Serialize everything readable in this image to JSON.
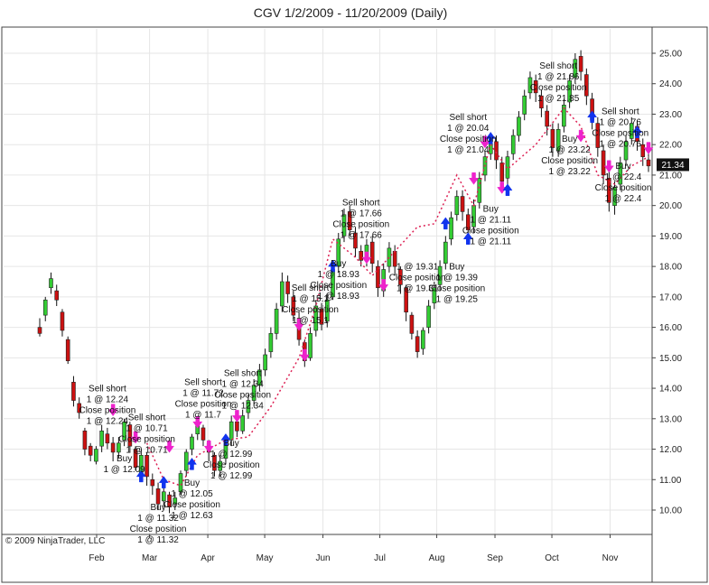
{
  "chart_data": {
    "type": "candlestick",
    "title": "CGV  1/2/2009 - 11/20/2009 (Daily)",
    "copyright": "© 2009 NinjaTrader, LLC",
    "ylim": [
      9.2,
      25.8
    ],
    "y_ticks": [
      "10.00",
      "11.00",
      "12.00",
      "13.00",
      "14.00",
      "15.00",
      "16.00",
      "17.00",
      "18.00",
      "19.00",
      "20.00",
      "21.00",
      "22.00",
      "23.00",
      "24.00",
      "25.00"
    ],
    "x_ticks": [
      {
        "label": "Feb",
        "week": 4.3
      },
      {
        "label": "Mar",
        "week": 8.3
      },
      {
        "label": "Apr",
        "week": 12.7
      },
      {
        "label": "May",
        "week": 17.0
      },
      {
        "label": "Jun",
        "week": 21.4
      },
      {
        "label": "Jul",
        "week": 25.7
      },
      {
        "label": "Aug",
        "week": 30.0
      },
      {
        "label": "Sep",
        "week": 34.4
      },
      {
        "label": "Oct",
        "week": 38.7
      },
      {
        "label": "Nov",
        "week": 43.1
      }
    ],
    "last_price": "21.34",
    "colors": {
      "up": "#33cc33",
      "down": "#cc1111",
      "wick": "#111111",
      "grid": "#e6e6e6",
      "last_bg": "#111111",
      "trade_line": "#dd2255"
    },
    "candles": [
      [
        0,
        16.0,
        15.8,
        16.3,
        15.7
      ],
      [
        1,
        16.4,
        16.9,
        17.0,
        16.2
      ],
      [
        2,
        17.3,
        17.6,
        17.8,
        17.1
      ],
      [
        3,
        17.2,
        16.9,
        17.4,
        16.7
      ],
      [
        4,
        16.5,
        15.9,
        16.6,
        15.7
      ],
      [
        5,
        15.6,
        14.9,
        15.7,
        14.8
      ],
      [
        6,
        14.2,
        13.6,
        14.4,
        13.4
      ],
      [
        7,
        13.5,
        13.2,
        13.7,
        13.0
      ],
      [
        8,
        12.6,
        12.0,
        12.7,
        11.8
      ],
      [
        9,
        12.1,
        11.8,
        12.2,
        11.6
      ],
      [
        10,
        11.6,
        12.0,
        12.1,
        11.5
      ],
      [
        11,
        12.1,
        12.6,
        12.8,
        11.9
      ],
      [
        12,
        12.5,
        12.2,
        12.7,
        12.0
      ],
      [
        13,
        12.2,
        11.9,
        12.4,
        11.6
      ],
      [
        14,
        11.9,
        12.2,
        12.4,
        11.7
      ],
      [
        15,
        12.3,
        12.9,
        13.0,
        12.1
      ],
      [
        16,
        12.8,
        12.1,
        12.9,
        11.9
      ],
      [
        17,
        12.0,
        11.4,
        12.1,
        11.3
      ],
      [
        18,
        11.2,
        11.8,
        12.0,
        11.0
      ],
      [
        19,
        11.8,
        11.1,
        11.9,
        10.8
      ],
      [
        20,
        11.0,
        10.8,
        11.2,
        10.5
      ],
      [
        21,
        10.7,
        10.2,
        10.9,
        10.0
      ],
      [
        22,
        10.3,
        10.6,
        10.8,
        10.1
      ],
      [
        23,
        10.5,
        10.1,
        10.6,
        9.9
      ],
      [
        24,
        10.2,
        10.4,
        10.6,
        10.0
      ],
      [
        25,
        10.6,
        11.2,
        11.3,
        10.5
      ],
      [
        26,
        11.3,
        11.9,
        12.0,
        11.1
      ],
      [
        27,
        12.0,
        12.4,
        12.5,
        11.8
      ],
      [
        28,
        12.5,
        12.8,
        13.0,
        12.3
      ],
      [
        29,
        12.7,
        12.3,
        12.8,
        12.1
      ],
      [
        30,
        12.2,
        11.9,
        12.3,
        11.6
      ],
      [
        31,
        11.8,
        11.3,
        11.9,
        11.1
      ],
      [
        32,
        11.3,
        11.6,
        11.8,
        11.1
      ],
      [
        33,
        11.7,
        12.2,
        12.4,
        11.5
      ],
      [
        34,
        12.3,
        12.9,
        13.1,
        12.1
      ],
      [
        35,
        12.9,
        12.6,
        13.0,
        12.4
      ],
      [
        36,
        12.6,
        13.1,
        13.3,
        12.5
      ],
      [
        37,
        13.2,
        13.6,
        13.8,
        13.0
      ],
      [
        38,
        13.6,
        14.1,
        14.3,
        13.4
      ],
      [
        39,
        14.1,
        14.6,
        14.8,
        13.9
      ],
      [
        40,
        14.6,
        15.1,
        15.3,
        14.4
      ],
      [
        41,
        15.2,
        15.8,
        16.0,
        15.0
      ],
      [
        42,
        15.8,
        16.6,
        16.8,
        15.6
      ],
      [
        43,
        16.7,
        17.5,
        17.8,
        16.5
      ],
      [
        44,
        17.5,
        17.1,
        17.7,
        16.8
      ],
      [
        45,
        17.0,
        16.4,
        17.2,
        16.2
      ],
      [
        46,
        16.3,
        15.6,
        16.5,
        15.4
      ],
      [
        47,
        15.5,
        14.9,
        15.6,
        14.7
      ],
      [
        48,
        15.0,
        15.8,
        16.0,
        14.9
      ],
      [
        49,
        15.9,
        16.7,
        16.9,
        15.7
      ],
      [
        50,
        16.6,
        16.1,
        16.8,
        15.9
      ],
      [
        51,
        16.2,
        16.9,
        17.1,
        16.0
      ],
      [
        52,
        17.0,
        17.9,
        18.1,
        16.9
      ],
      [
        53,
        18.0,
        18.9,
        19.1,
        17.8
      ],
      [
        54,
        19.0,
        19.7,
        19.9,
        18.8
      ],
      [
        55,
        19.8,
        19.2,
        20.0,
        19.0
      ],
      [
        56,
        19.1,
        18.6,
        19.3,
        18.3
      ],
      [
        57,
        18.5,
        18.2,
        18.7,
        18.0
      ],
      [
        58,
        18.2,
        18.7,
        18.9,
        18.0
      ],
      [
        59,
        18.8,
        18.1,
        19.0,
        17.8
      ],
      [
        60,
        18.0,
        17.3,
        18.2,
        17.0
      ],
      [
        61,
        17.2,
        17.9,
        18.1,
        17.0
      ],
      [
        62,
        18.0,
        18.6,
        18.8,
        17.8
      ],
      [
        63,
        18.5,
        18.0,
        18.7,
        17.7
      ],
      [
        64,
        17.9,
        17.4,
        18.0,
        17.1
      ],
      [
        65,
        17.3,
        16.5,
        17.4,
        16.2
      ],
      [
        66,
        16.4,
        15.8,
        16.5,
        15.6
      ],
      [
        67,
        15.7,
        15.2,
        15.9,
        15.0
      ],
      [
        68,
        15.3,
        15.9,
        16.0,
        15.1
      ],
      [
        69,
        16.0,
        16.7,
        16.9,
        15.8
      ],
      [
        70,
        16.8,
        17.3,
        17.5,
        16.6
      ],
      [
        71,
        17.4,
        18.0,
        18.2,
        17.2
      ],
      [
        72,
        18.1,
        18.8,
        19.0,
        17.9
      ],
      [
        73,
        18.9,
        19.6,
        19.8,
        18.7
      ],
      [
        74,
        19.7,
        20.3,
        20.5,
        19.5
      ],
      [
        75,
        20.3,
        19.8,
        20.5,
        19.5
      ],
      [
        76,
        19.7,
        19.2,
        19.9,
        18.9
      ],
      [
        77,
        19.3,
        20.0,
        20.2,
        19.1
      ],
      [
        78,
        20.1,
        20.9,
        21.1,
        19.9
      ],
      [
        79,
        21.0,
        21.6,
        21.8,
        20.8
      ],
      [
        80,
        21.7,
        22.2,
        22.4,
        21.5
      ],
      [
        81,
        22.1,
        21.5,
        22.3,
        21.2
      ],
      [
        82,
        21.4,
        20.8,
        21.6,
        20.5
      ],
      [
        83,
        20.9,
        21.6,
        21.8,
        20.7
      ],
      [
        84,
        21.7,
        22.3,
        22.5,
        21.5
      ],
      [
        85,
        22.3,
        22.9,
        23.1,
        22.1
      ],
      [
        86,
        23.0,
        23.6,
        23.8,
        22.8
      ],
      [
        87,
        23.7,
        24.2,
        24.4,
        23.5
      ],
      [
        88,
        24.1,
        23.7,
        24.3,
        23.4
      ],
      [
        89,
        23.6,
        23.2,
        23.8,
        22.9
      ],
      [
        90,
        23.1,
        22.6,
        23.3,
        22.3
      ],
      [
        91,
        22.5,
        21.9,
        22.7,
        21.6
      ],
      [
        92,
        21.8,
        22.5,
        22.7,
        21.6
      ],
      [
        93,
        22.6,
        23.3,
        23.5,
        22.4
      ],
      [
        94,
        23.4,
        24.1,
        24.3,
        23.2
      ],
      [
        95,
        24.2,
        24.8,
        25.0,
        24.0
      ],
      [
        96,
        24.9,
        24.4,
        25.1,
        24.1
      ],
      [
        97,
        24.3,
        23.6,
        24.5,
        23.3
      ],
      [
        98,
        23.5,
        22.8,
        23.7,
        22.5
      ],
      [
        99,
        22.7,
        21.9,
        22.9,
        21.6
      ],
      [
        100,
        21.8,
        21.0,
        22.0,
        20.7
      ],
      [
        101,
        20.9,
        20.1,
        21.1,
        19.8
      ],
      [
        102,
        20.0,
        20.6,
        20.8,
        19.7
      ],
      [
        103,
        20.7,
        21.4,
        21.6,
        20.5
      ],
      [
        104,
        21.5,
        22.1,
        22.3,
        21.3
      ],
      [
        105,
        22.2,
        22.7,
        22.9,
        22.0
      ],
      [
        106,
        22.6,
        22.1,
        22.8,
        21.8
      ],
      [
        107,
        22.0,
        21.6,
        22.2,
        21.3
      ],
      [
        108,
        21.5,
        21.3,
        21.7,
        21.1
      ]
    ],
    "trade_path": [
      [
        19,
        12.2
      ],
      [
        22,
        11.0
      ],
      [
        25,
        10.8
      ],
      [
        28,
        11.8
      ],
      [
        33,
        12.3
      ],
      [
        37,
        12.4
      ],
      [
        41,
        13.4
      ],
      [
        46,
        15.0
      ],
      [
        49,
        16.7
      ],
      [
        52,
        18.9
      ],
      [
        56,
        18.3
      ],
      [
        59,
        17.7
      ],
      [
        63,
        18.5
      ],
      [
        67,
        19.3
      ],
      [
        70,
        19.4
      ],
      [
        74,
        21.0
      ],
      [
        77,
        20.0
      ],
      [
        80,
        22.0
      ],
      [
        83,
        21.2
      ],
      [
        88,
        22.0
      ],
      [
        93,
        23.2
      ],
      [
        96,
        22.6
      ],
      [
        99,
        21.0
      ],
      [
        102,
        20.7
      ],
      [
        105,
        21.3
      ],
      [
        108,
        21.6
      ]
    ],
    "arrows": [
      {
        "i": 13,
        "p": 13.3,
        "dir": "down"
      },
      {
        "i": 17,
        "p": 12.4,
        "dir": "down"
      },
      {
        "i": 18,
        "p": 11.1,
        "dir": "up"
      },
      {
        "i": 22,
        "p": 10.9,
        "dir": "up"
      },
      {
        "i": 23,
        "p": 12.1,
        "dir": "down"
      },
      {
        "i": 27,
        "p": 11.5,
        "dir": "up"
      },
      {
        "i": 28,
        "p": 12.9,
        "dir": "down"
      },
      {
        "i": 30,
        "p": 12.1,
        "dir": "down"
      },
      {
        "i": 33,
        "p": 12.3,
        "dir": "up"
      },
      {
        "i": 35,
        "p": 13.1,
        "dir": "down"
      },
      {
        "i": 46,
        "p": 16.1,
        "dir": "down"
      },
      {
        "i": 47,
        "p": 15.1,
        "dir": "down"
      },
      {
        "i": 52,
        "p": 18.0,
        "dir": "up"
      },
      {
        "i": 58,
        "p": 18.3,
        "dir": "down"
      },
      {
        "i": 61,
        "p": 17.4,
        "dir": "down"
      },
      {
        "i": 72,
        "p": 19.4,
        "dir": "up"
      },
      {
        "i": 76,
        "p": 18.9,
        "dir": "up"
      },
      {
        "i": 77,
        "p": 20.9,
        "dir": "down"
      },
      {
        "i": 79,
        "p": 22.1,
        "dir": "down"
      },
      {
        "i": 80,
        "p": 22.2,
        "dir": "up"
      },
      {
        "i": 82,
        "p": 20.6,
        "dir": "down"
      },
      {
        "i": 83,
        "p": 20.5,
        "dir": "up"
      },
      {
        "i": 96,
        "p": 22.3,
        "dir": "down"
      },
      {
        "i": 98,
        "p": 22.9,
        "dir": "up"
      },
      {
        "i": 101,
        "p": 21.3,
        "dir": "down"
      },
      {
        "i": 106,
        "p": 22.4,
        "dir": "up"
      },
      {
        "i": 108,
        "p": 21.9,
        "dir": "down"
      }
    ],
    "annotations": [
      {
        "i": 12,
        "p": 13.9,
        "lines": [
          "Sell short",
          "1 @ 12.24",
          "Close position",
          "1 @ 12.24"
        ]
      },
      {
        "i": 19,
        "p": 12.95,
        "lines": [
          "Sell short",
          "1 @ 10.71",
          "Close position",
          "1 @ 10.71"
        ]
      },
      {
        "i": 15,
        "p": 11.6,
        "lines": [
          "Buy",
          "1 @ 12.09"
        ]
      },
      {
        "i": 21,
        "p": 10.0,
        "lines": [
          "Buy",
          "1 @ 11.32",
          "Close position",
          "1 @ 11.32"
        ]
      },
      {
        "i": 29,
        "p": 14.1,
        "lines": [
          "Sell short",
          "1 @ 11.72",
          "Close position",
          "1 @ 11.7"
        ]
      },
      {
        "i": 36,
        "p": 14.4,
        "lines": [
          "Sell short",
          "1 @ 12.34",
          "Close position",
          "1 @ 12.34"
        ]
      },
      {
        "i": 34,
        "p": 12.1,
        "lines": [
          "Buy",
          "1 @ 12.99",
          "Close position",
          "1 @ 12.99"
        ]
      },
      {
        "i": 27,
        "p": 10.8,
        "lines": [
          "Buy",
          "1 @ 12.05",
          "Close position",
          "1 @ 12.63"
        ]
      },
      {
        "i": 48,
        "p": 17.2,
        "lines": [
          "Sell short",
          "1 @ 15.1",
          "Close position",
          "1 @ 15.1"
        ]
      },
      {
        "i": 53,
        "p": 18.0,
        "lines": [
          "Buy",
          "1 @ 18.93",
          "Close position",
          "1 @ 18.93"
        ]
      },
      {
        "i": 57,
        "p": 20.0,
        "lines": [
          "Sell short",
          "1 @ 17.66",
          "Close position",
          "1 @ 17.66"
        ]
      },
      {
        "i": 67,
        "p": 17.9,
        "lines": [
          "1 @ 19.31",
          "Close position",
          "1 @ 19.31"
        ]
      },
      {
        "i": 74,
        "p": 17.9,
        "lines": [
          "Buy",
          "1 @ 19.39",
          "Close position",
          "1 @ 19.25"
        ]
      },
      {
        "i": 80,
        "p": 19.8,
        "lines": [
          "Buy",
          "1 @ 21.11",
          "Close position",
          "1 @ 21.11"
        ]
      },
      {
        "i": 76,
        "p": 22.8,
        "lines": [
          "Sell short",
          "1 @ 20.04",
          "Close position",
          "1 @ 21.04"
        ]
      },
      {
        "i": 92,
        "p": 24.5,
        "lines": [
          "Sell short",
          "1 @ 21.86",
          "Close position",
          "1 @ 21.85"
        ]
      },
      {
        "i": 94,
        "p": 22.1,
        "lines": [
          "Buy",
          "1 @ 23.22",
          "Close position",
          "1 @ 23.22"
        ]
      },
      {
        "i": 103,
        "p": 23.0,
        "lines": [
          "Sell short",
          "1 @ 20.76",
          "Close position",
          "1 @ 20.76"
        ]
      },
      {
        "i": 107,
        "p": 21.2,
        "lines": [
          "Buy",
          "1 @ 22.4",
          "Close position",
          "1 @ 22.4"
        ]
      }
    ]
  }
}
